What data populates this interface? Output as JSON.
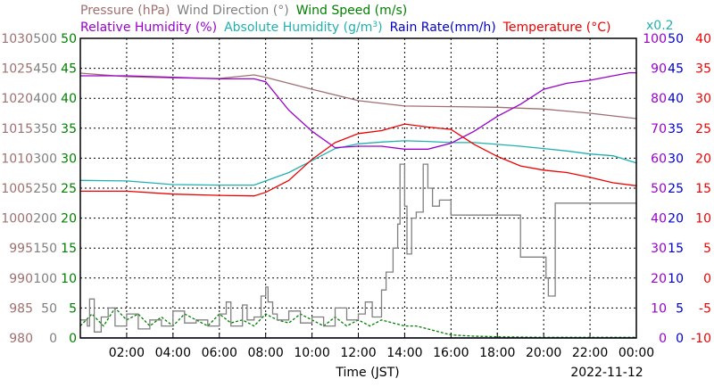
{
  "chart_data": {
    "type": "line",
    "title_row1": [
      {
        "name": "pressure-title",
        "text": "Pressure (hPa)",
        "color": "#a07070"
      },
      {
        "name": "wind-direction-title",
        "text": "Wind Direction (°)",
        "color": "#808080"
      },
      {
        "name": "wind-speed-title",
        "text": "Wind Speed (m/s)",
        "color": "#008000"
      }
    ],
    "title_row2": [
      {
        "name": "relative-humidity-title",
        "text": "Relative Humidity (%)",
        "color": "#9900cc"
      },
      {
        "name": "absolute-humidity-title-text",
        "text": "Absolute Humidity (g/m",
        "color": "#20b0b0"
      },
      {
        "name": "absolute-humidity-sup",
        "text": "3",
        "color": "#20b0b0",
        "sup": true
      },
      {
        "name": "absolute-humidity-close",
        "text": ")",
        "color": "#20b0b0"
      },
      {
        "name": "rain-rate-title",
        "text": "Rain Rate(mm/h)",
        "color": "#0000cc"
      },
      {
        "name": "temperature-title",
        "text": "Temperature (°C)",
        "color": "#ee0000"
      }
    ],
    "abs_humidity_scale": "x0.2",
    "xlabel": "Time (JST)",
    "date": "2022-11-12",
    "xlim": [
      0,
      24
    ],
    "x_ticks": [
      {
        "h": 2,
        "label": "02:00"
      },
      {
        "h": 4,
        "label": "04:00"
      },
      {
        "h": 6,
        "label": "06:00"
      },
      {
        "h": 8,
        "label": "08:00"
      },
      {
        "h": 10,
        "label": "10:00"
      },
      {
        "h": 12,
        "label": "12:00"
      },
      {
        "h": 14,
        "label": "14:00"
      },
      {
        "h": 16,
        "label": "16:00"
      },
      {
        "h": 18,
        "label": "18:00"
      },
      {
        "h": 20,
        "label": "20:00"
      },
      {
        "h": 22,
        "label": "22:00"
      },
      {
        "h": 24,
        "label": "00:00"
      }
    ],
    "axes": {
      "pressure": {
        "color": "#a07070",
        "labels": [
          "1030",
          "1025",
          "1020",
          "1015",
          "1010",
          "1005",
          "1000",
          "995",
          "990",
          "985",
          "980"
        ]
      },
      "wind_direction": {
        "color": "#808080",
        "labels": [
          "500",
          "450",
          "400",
          "350",
          "300",
          "250",
          "200",
          "150",
          "100",
          "50",
          "0"
        ]
      },
      "wind_speed": {
        "color": "#008000",
        "labels": [
          "50",
          "45",
          "40",
          "35",
          "30",
          "25",
          "20",
          "15",
          "10",
          "5",
          "0"
        ]
      },
      "relative_humidity": {
        "color": "#9900cc",
        "labels": [
          "100",
          "90",
          "80",
          "70",
          "60",
          "50",
          "40",
          "30",
          "20",
          "10",
          "0"
        ]
      },
      "rain_rate": {
        "color": "#0000cc",
        "labels": [
          "50",
          "45",
          "40",
          "35",
          "30",
          "25",
          "20",
          "15",
          "10",
          "5",
          "0"
        ]
      },
      "temperature": {
        "color": "#ee0000",
        "labels": [
          "40",
          "35",
          "30",
          "25",
          "20",
          "15",
          "10",
          "5",
          "0",
          "-5",
          "-10"
        ]
      }
    },
    "series": [
      {
        "name": "Pressure (hPa)",
        "axis": "pressure",
        "color": "#a07070",
        "ylim": [
          980,
          1030
        ],
        "x": [
          0,
          2,
          4,
          6,
          7.5,
          8,
          10,
          12,
          14,
          16,
          18,
          20,
          22,
          24
        ],
        "values": [
          1024.2,
          1023.6,
          1023.4,
          1023.3,
          1023.9,
          1023.5,
          1021.5,
          1019.6,
          1018.7,
          1018.6,
          1018.5,
          1018.2,
          1017.5,
          1016.6
        ]
      },
      {
        "name": "Relative Humidity (%)",
        "axis": "relative_humidity",
        "color": "#9900cc",
        "ylim": [
          0,
          100
        ],
        "x": [
          0,
          2,
          4,
          6,
          7.5,
          8,
          9,
          10,
          11,
          12,
          13,
          14,
          15,
          16,
          17,
          18,
          19,
          20,
          21,
          22,
          23,
          23.7,
          24
        ],
        "values": [
          87.5,
          87.5,
          87,
          86.5,
          86.5,
          85.5,
          76,
          69,
          63.5,
          64,
          64,
          63,
          63,
          65,
          69,
          74,
          78,
          83,
          85,
          86,
          87.5,
          88.5,
          88.5
        ]
      },
      {
        "name": "Absolute Humidity (g/m3)",
        "axis": "wind_speed",
        "color": "#20b0b0",
        "ylim": [
          0,
          50
        ],
        "x": [
          0,
          2,
          4,
          6,
          7.5,
          8,
          9,
          10,
          11,
          12,
          13,
          14,
          15,
          16,
          17,
          18,
          19,
          20,
          21,
          22,
          23,
          24
        ],
        "values": [
          26.3,
          26.2,
          25.6,
          25.5,
          25.5,
          26.2,
          27.6,
          29.6,
          31.6,
          32.4,
          32.7,
          32.9,
          32.8,
          32.6,
          32.6,
          32.3,
          32.0,
          31.6,
          31.2,
          30.7,
          30.4,
          29.2
        ]
      },
      {
        "name": "Temperature (°C)",
        "axis": "temperature",
        "color": "#ee0000",
        "ylim": [
          -10,
          40
        ],
        "x": [
          0,
          2,
          4,
          6,
          7.5,
          8,
          9,
          10,
          11,
          12,
          13,
          14,
          15,
          16,
          17,
          18,
          19,
          20,
          21,
          22,
          23,
          24
        ],
        "values": [
          14.5,
          14.5,
          14.0,
          13.8,
          13.7,
          14.3,
          16.3,
          19.8,
          22.6,
          24.1,
          24.6,
          25.7,
          25.2,
          24.8,
          22.3,
          20.3,
          18.7,
          18.0,
          17.6,
          16.8,
          15.9,
          15.4
        ]
      },
      {
        "name": "Wind Direction (°)",
        "axis": "wind_direction",
        "color": "#808080",
        "ylim": [
          0,
          500
        ],
        "x": [
          0,
          0.3,
          0.4,
          0.6,
          0.9,
          1.2,
          1.5,
          2,
          2.5,
          3,
          3.5,
          4,
          4.5,
          5,
          5.5,
          6,
          6.3,
          6.5,
          7,
          7.2,
          7.5,
          7.8,
          8,
          8.1,
          8.3,
          8.5,
          9,
          9.5,
          10,
          10.5,
          11,
          11.5,
          12,
          12.3,
          12.6,
          13,
          13.2,
          13.5,
          13.7,
          13.8,
          14,
          14.1,
          14.3,
          14.5,
          14.8,
          15,
          15.2,
          15.5,
          16,
          17,
          18,
          18.5,
          19,
          19.5,
          19.8,
          20,
          20.1,
          20.2,
          20.5,
          21,
          22,
          23,
          24
        ],
        "values": [
          30,
          20,
          65,
          10,
          35,
          50,
          20,
          40,
          15,
          30,
          20,
          45,
          25,
          30,
          20,
          40,
          60,
          20,
          55,
          30,
          35,
          70,
          85,
          60,
          40,
          30,
          45,
          25,
          35,
          20,
          50,
          30,
          40,
          60,
          35,
          80,
          110,
          150,
          190,
          290,
          220,
          140,
          200,
          210,
          290,
          250,
          220,
          230,
          205,
          205,
          205,
          205,
          135,
          135,
          135,
          135,
          100,
          70,
          225,
          225,
          225,
          225,
          225
        ]
      },
      {
        "name": "Wind Speed (m/s)",
        "axis": "wind_speed",
        "color": "#008000",
        "ylim": [
          0,
          50
        ],
        "x": [
          0,
          0.5,
          1,
          1.5,
          2,
          2.5,
          3,
          3.5,
          4,
          4.5,
          5,
          5.5,
          6,
          6.5,
          7,
          7.5,
          8,
          8.5,
          9,
          9.5,
          10,
          10.5,
          11,
          11.5,
          12,
          12.5,
          13,
          13.5,
          14,
          14.5,
          15,
          15.5,
          16,
          17,
          18,
          20,
          22,
          24
        ],
        "values": [
          2,
          4,
          2,
          5,
          3,
          4,
          2,
          3.5,
          2,
          4,
          3,
          2,
          4,
          2.5,
          3,
          2,
          4,
          3,
          2.5,
          4,
          3,
          2,
          3.5,
          2,
          3,
          2,
          3,
          2.5,
          2,
          2,
          1.5,
          1,
          0.5,
          0.3,
          0.2,
          0.1,
          0.1,
          0.1
        ]
      },
      {
        "name": "Rain Rate(mm/h)",
        "axis": "rain_rate",
        "color": "#0000cc",
        "ylim": [
          0,
          50
        ],
        "x": [
          0,
          24
        ],
        "values": [
          0,
          0
        ]
      }
    ],
    "grid": true
  }
}
